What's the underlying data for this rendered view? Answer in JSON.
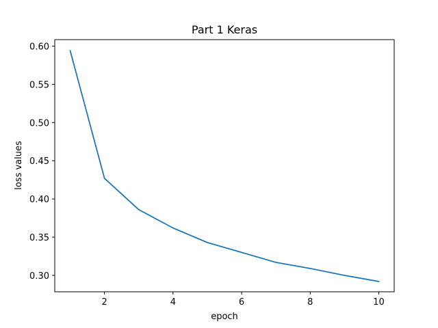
{
  "chart_data": {
    "type": "line",
    "title": "Part 1 Keras",
    "xlabel": "epoch",
    "ylabel": "loss values",
    "xlim": [
      0.55,
      10.45
    ],
    "ylim": [
      0.2785,
      0.6085
    ],
    "xticks": [
      2,
      4,
      6,
      8,
      10
    ],
    "yticks": [
      0.3,
      0.35,
      0.4,
      0.45,
      0.5,
      0.55,
      0.6
    ],
    "grid": false,
    "line_color": "#1f77b4",
    "series": [
      {
        "x": [
          1,
          2,
          3,
          4,
          5,
          6,
          7,
          8,
          9,
          10
        ],
        "values": [
          0.594,
          0.427,
          0.386,
          0.362,
          0.343,
          0.33,
          0.317,
          0.309,
          0.3,
          0.292
        ]
      }
    ]
  }
}
